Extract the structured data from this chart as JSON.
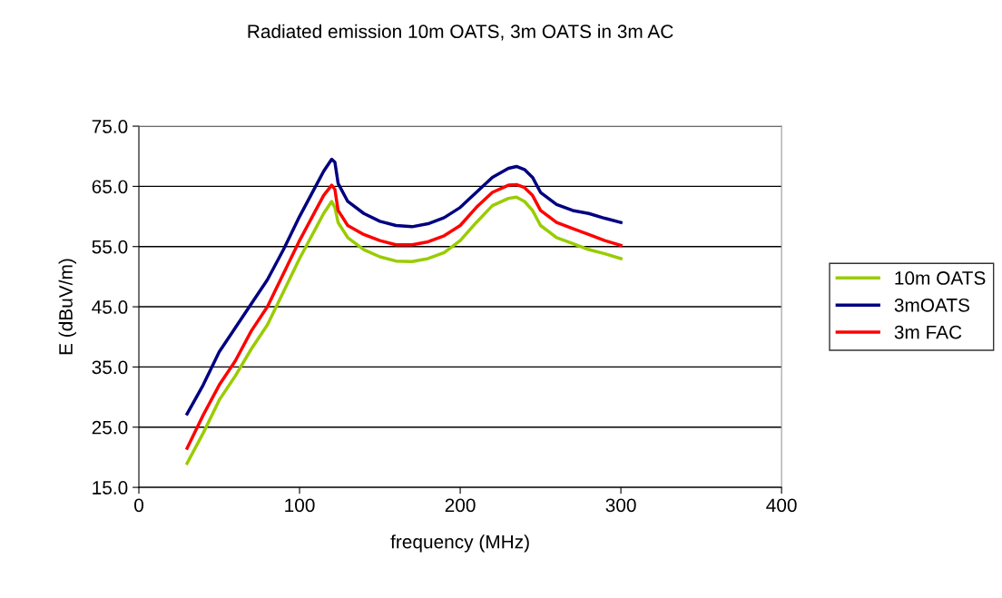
{
  "chart_data": {
    "type": "line",
    "title": "Radiated emission 10m OATS, 3m OATS in 3m AC",
    "xlabel": "frequency (MHz)",
    "ylabel": "E (dBuV/m)",
    "x": [
      30,
      40,
      50,
      60,
      70,
      80,
      90,
      100,
      110,
      115,
      120,
      122,
      124,
      130,
      140,
      150,
      160,
      170,
      180,
      190,
      200,
      210,
      220,
      230,
      235,
      240,
      245,
      250,
      260,
      270,
      280,
      290,
      300
    ],
    "series": [
      {
        "name": "10m OATS",
        "color": "#99cc00",
        "values": [
          19,
          24,
          29.5,
          33.5,
          38,
          42,
          47.5,
          53,
          58,
          60.5,
          62.5,
          61.5,
          59,
          56.5,
          54.5,
          53.3,
          52.6,
          52.5,
          53,
          54,
          56,
          59,
          61.8,
          63,
          63.2,
          62.5,
          61,
          58.5,
          56.5,
          55.5,
          54.5,
          53.8,
          53
        ]
      },
      {
        "name": "3mOATS",
        "color": "#000080",
        "values": [
          27.2,
          32,
          37.5,
          41.5,
          45.5,
          49.5,
          54.5,
          60,
          65,
          67.5,
          69.5,
          69,
          65.5,
          62.5,
          60.5,
          59.2,
          58.5,
          58.3,
          58.8,
          59.8,
          61.5,
          64,
          66.5,
          68,
          68.3,
          67.8,
          66.5,
          64,
          62,
          61,
          60.5,
          59.7,
          59
        ]
      },
      {
        "name": "3m FAC",
        "color": "#ff0000",
        "values": [
          21.5,
          27,
          32,
          36,
          41,
          45,
          50.5,
          56,
          61,
          63.5,
          65.2,
          64.5,
          61,
          58.5,
          57,
          56,
          55.3,
          55.3,
          55.8,
          56.8,
          58.5,
          61.5,
          64,
          65.2,
          65.3,
          64.8,
          63.5,
          61,
          59,
          58,
          57,
          56,
          55.2
        ]
      }
    ],
    "xlim": [
      0,
      400
    ],
    "xticks": [
      0,
      100,
      200,
      300,
      400
    ],
    "ylim": [
      15,
      75
    ],
    "yticks": [
      {
        "value": 15,
        "label": "15.0"
      },
      {
        "value": 25,
        "label": "25.0"
      },
      {
        "value": 35,
        "label": "35.0"
      },
      {
        "value": 45,
        "label": "45.0"
      },
      {
        "value": 55,
        "label": "55.0"
      },
      {
        "value": 65,
        "label": "65.0"
      },
      {
        "value": 75,
        "label": "75.0"
      }
    ],
    "grid": "y",
    "legend": "right",
    "marker": "none",
    "line_style": "solid"
  }
}
